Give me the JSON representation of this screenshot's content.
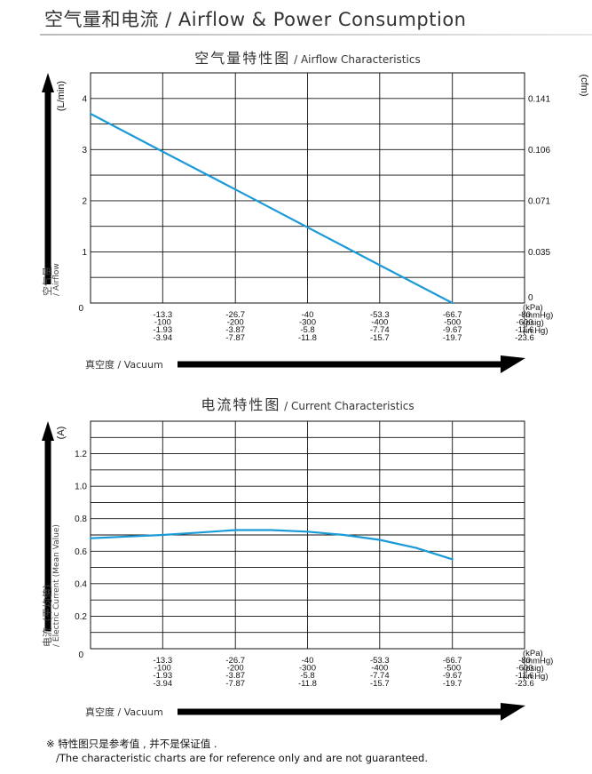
{
  "page": {
    "title": "空气量和电流 / Airflow & Power Consumption",
    "footnote_line1": "※ 特性图只是参考值 , 并不是保证值 .",
    "footnote_line2": "/The characteristic charts are for reference only and are not guaranteed."
  },
  "colors": {
    "series": "#1a9ad6",
    "grid": "#111111",
    "arrow": "#000000"
  },
  "chart_data": [
    {
      "type": "line",
      "title": "空气量特性图",
      "subtitle": "/ Airflow Characteristics",
      "ylabel": "空气量",
      "ylabel_sub": "/ Airflow",
      "yunit": "(L/min)",
      "y2unit": "(cfm)",
      "xlabel": "真空度 / Vacuum",
      "xlim": [
        0,
        80
      ],
      "ylim": [
        0,
        4.5
      ],
      "yticks": [
        {
          "value": 0,
          "label": "0"
        },
        {
          "value": 1,
          "label": "1"
        },
        {
          "value": 2,
          "label": "2"
        },
        {
          "value": 3,
          "label": "3"
        },
        {
          "value": 4,
          "label": "4"
        }
      ],
      "y2ticks": [
        {
          "value": 0,
          "label": "0"
        },
        {
          "value": 1,
          "label": "0.035"
        },
        {
          "value": 2,
          "label": "0.071"
        },
        {
          "value": 3,
          "label": "0.106"
        },
        {
          "value": 4,
          "label": "0.141"
        }
      ],
      "xticks": [
        {
          "value": 0,
          "label": "0"
        },
        {
          "value": 13.3,
          "lines": [
            "-13.3",
            "-100",
            "-1.93",
            "-3.94"
          ]
        },
        {
          "value": 26.7,
          "lines": [
            "-26.7",
            "-200",
            "-3.87",
            "-7.87"
          ]
        },
        {
          "value": 40,
          "lines": [
            "-40",
            "-300",
            "-5.8",
            "-11.8"
          ]
        },
        {
          "value": 53.3,
          "lines": [
            "-53.3",
            "-400",
            "-7.74",
            "-15.7"
          ]
        },
        {
          "value": 66.7,
          "lines": [
            "-66.7",
            "-500",
            "-9.67",
            "-19.7"
          ]
        },
        {
          "value": 80,
          "lines": [
            "-80",
            "-600",
            "-11.6",
            "-23.6"
          ]
        }
      ],
      "xunits": [
        "(kPa)",
        "(mmHg)",
        "(psig)",
        "(in.Hg)"
      ],
      "grid": true,
      "series": [
        {
          "x": [
            0,
            13.3,
            26.7,
            40,
            53.3,
            66.7
          ],
          "y": [
            3.7,
            2.96,
            2.22,
            1.48,
            0.74,
            0
          ]
        }
      ]
    },
    {
      "type": "line",
      "title": "电流特性图",
      "subtitle": "/ Current Characteristics",
      "ylabel": "电流（平均值）",
      "ylabel_sub": "/ Electric Current (Mean Value)",
      "yunit": "(A)",
      "xlabel": "真空度 / Vacuum",
      "xlim": [
        0,
        80
      ],
      "ylim": [
        0,
        1.4
      ],
      "yticks": [
        {
          "value": 0,
          "label": "0"
        },
        {
          "value": 0.2,
          "label": "0.2"
        },
        {
          "value": 0.4,
          "label": "0.4"
        },
        {
          "value": 0.6,
          "label": "0.6"
        },
        {
          "value": 0.8,
          "label": "0.8"
        },
        {
          "value": 1.0,
          "label": "1.0"
        },
        {
          "value": 1.2,
          "label": "1.2"
        }
      ],
      "xticks": [
        {
          "value": 0,
          "label": "0"
        },
        {
          "value": 13.3,
          "lines": [
            "-13.3",
            "-100",
            "-1.93",
            "-3.94"
          ]
        },
        {
          "value": 26.7,
          "lines": [
            "-26.7",
            "-200",
            "-3.87",
            "-7.87"
          ]
        },
        {
          "value": 40,
          "lines": [
            "-40",
            "-300",
            "-5.8",
            "-11.8"
          ]
        },
        {
          "value": 53.3,
          "lines": [
            "-53.3",
            "-400",
            "-7.74",
            "-15.7"
          ]
        },
        {
          "value": 66.7,
          "lines": [
            "-66.7",
            "-500",
            "-9.67",
            "-19.7"
          ]
        },
        {
          "value": 80,
          "lines": [
            "-80",
            "-600",
            "-11.6",
            "-23.6"
          ]
        }
      ],
      "xunits": [
        "(kPa)",
        "(mmHg)",
        "(psig)",
        "(in.Hg)"
      ],
      "grid": true,
      "series": [
        {
          "x": [
            0,
            6.7,
            13.3,
            20,
            26.7,
            33.3,
            40,
            46.7,
            53.3,
            60,
            66.7
          ],
          "y": [
            0.68,
            0.69,
            0.7,
            0.715,
            0.73,
            0.73,
            0.72,
            0.7,
            0.67,
            0.62,
            0.55
          ]
        }
      ]
    }
  ]
}
